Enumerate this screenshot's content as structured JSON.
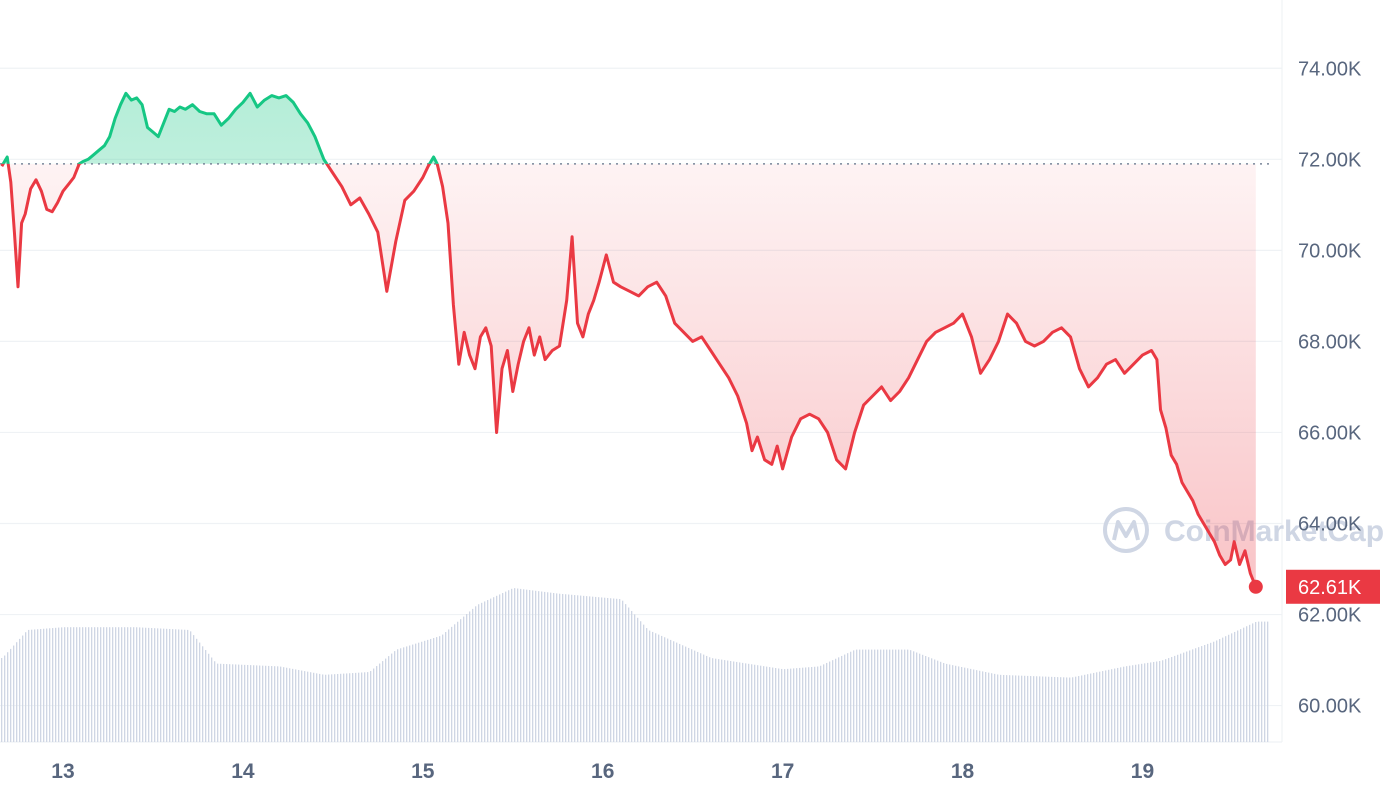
{
  "chart_data": {
    "type": "line",
    "title": "",
    "xlabel": "",
    "ylabel": "",
    "x_ticks": [
      "13",
      "14",
      "15",
      "16",
      "17",
      "18",
      "19"
    ],
    "y_ticks": [
      "74.00K",
      "72.00K",
      "70.00K",
      "68.00K",
      "66.00K",
      "64.00K",
      "62.00K",
      "60.00K"
    ],
    "ylim": [
      59200,
      75500
    ],
    "xlim": [
      12.65,
      19.72
    ],
    "baseline": 71900,
    "last_price_label": "62.61K",
    "last_price": 62610,
    "grid": true,
    "colors": {
      "up": "#16c784",
      "down": "#ea3943",
      "volume": "#cfd6e4",
      "grid": "#eff2f5"
    },
    "series": [
      {
        "values": [
          [
            12.66,
            71850
          ],
          [
            12.69,
            72050
          ],
          [
            12.71,
            71500
          ],
          [
            12.73,
            70400
          ],
          [
            12.75,
            69200
          ],
          [
            12.77,
            70600
          ],
          [
            12.79,
            70800
          ],
          [
            12.82,
            71350
          ],
          [
            12.85,
            71550
          ],
          [
            12.88,
            71300
          ],
          [
            12.91,
            70900
          ],
          [
            12.94,
            70850
          ],
          [
            12.97,
            71050
          ],
          [
            13.0,
            71300
          ],
          [
            13.03,
            71450
          ],
          [
            13.06,
            71600
          ],
          [
            13.09,
            71900
          ],
          [
            13.11,
            71950
          ],
          [
            13.14,
            72000
          ],
          [
            13.17,
            72100
          ],
          [
            13.2,
            72200
          ],
          [
            13.23,
            72300
          ],
          [
            13.26,
            72500
          ],
          [
            13.29,
            72900
          ],
          [
            13.32,
            73200
          ],
          [
            13.35,
            73450
          ],
          [
            13.38,
            73300
          ],
          [
            13.41,
            73350
          ],
          [
            13.44,
            73200
          ],
          [
            13.47,
            72700
          ],
          [
            13.5,
            72600
          ],
          [
            13.53,
            72500
          ],
          [
            13.56,
            72800
          ],
          [
            13.59,
            73100
          ],
          [
            13.62,
            73050
          ],
          [
            13.65,
            73150
          ],
          [
            13.68,
            73100
          ],
          [
            13.72,
            73200
          ],
          [
            13.76,
            73050
          ],
          [
            13.8,
            73000
          ],
          [
            13.84,
            73000
          ],
          [
            13.88,
            72750
          ],
          [
            13.92,
            72900
          ],
          [
            13.96,
            73100
          ],
          [
            14.0,
            73250
          ],
          [
            14.04,
            73450
          ],
          [
            14.08,
            73150
          ],
          [
            14.12,
            73300
          ],
          [
            14.16,
            73400
          ],
          [
            14.2,
            73350
          ],
          [
            14.24,
            73400
          ],
          [
            14.28,
            73250
          ],
          [
            14.32,
            73000
          ],
          [
            14.36,
            72800
          ],
          [
            14.4,
            72500
          ],
          [
            14.45,
            72000
          ],
          [
            14.5,
            71700
          ],
          [
            14.55,
            71400
          ],
          [
            14.6,
            71000
          ],
          [
            14.65,
            71150
          ],
          [
            14.7,
            70800
          ],
          [
            14.75,
            70400
          ],
          [
            14.8,
            69100
          ],
          [
            14.85,
            70200
          ],
          [
            14.9,
            71100
          ],
          [
            14.95,
            71300
          ],
          [
            15.0,
            71600
          ],
          [
            15.03,
            71850
          ],
          [
            15.06,
            72050
          ],
          [
            15.08,
            71900
          ],
          [
            15.11,
            71400
          ],
          [
            15.14,
            70600
          ],
          [
            15.17,
            68800
          ],
          [
            15.2,
            67500
          ],
          [
            15.23,
            68200
          ],
          [
            15.26,
            67700
          ],
          [
            15.29,
            67400
          ],
          [
            15.32,
            68100
          ],
          [
            15.35,
            68300
          ],
          [
            15.38,
            67900
          ],
          [
            15.41,
            66000
          ],
          [
            15.44,
            67400
          ],
          [
            15.47,
            67800
          ],
          [
            15.5,
            66900
          ],
          [
            15.53,
            67500
          ],
          [
            15.56,
            68000
          ],
          [
            15.59,
            68300
          ],
          [
            15.62,
            67700
          ],
          [
            15.65,
            68100
          ],
          [
            15.68,
            67600
          ],
          [
            15.72,
            67800
          ],
          [
            15.76,
            67900
          ],
          [
            15.8,
            68900
          ],
          [
            15.83,
            70300
          ],
          [
            15.86,
            68400
          ],
          [
            15.89,
            68100
          ],
          [
            15.92,
            68600
          ],
          [
            15.95,
            68900
          ],
          [
            15.98,
            69300
          ],
          [
            16.02,
            69900
          ],
          [
            16.06,
            69300
          ],
          [
            16.1,
            69200
          ],
          [
            16.15,
            69100
          ],
          [
            16.2,
            69000
          ],
          [
            16.25,
            69200
          ],
          [
            16.3,
            69300
          ],
          [
            16.35,
            69000
          ],
          [
            16.4,
            68400
          ],
          [
            16.45,
            68200
          ],
          [
            16.5,
            68000
          ],
          [
            16.55,
            68100
          ],
          [
            16.6,
            67800
          ],
          [
            16.65,
            67500
          ],
          [
            16.7,
            67200
          ],
          [
            16.75,
            66800
          ],
          [
            16.8,
            66200
          ],
          [
            16.83,
            65600
          ],
          [
            16.86,
            65900
          ],
          [
            16.9,
            65400
          ],
          [
            16.94,
            65300
          ],
          [
            16.97,
            65700
          ],
          [
            17.0,
            65200
          ],
          [
            17.05,
            65900
          ],
          [
            17.1,
            66300
          ],
          [
            17.15,
            66400
          ],
          [
            17.2,
            66300
          ],
          [
            17.25,
            66000
          ],
          [
            17.3,
            65400
          ],
          [
            17.35,
            65200
          ],
          [
            17.4,
            66000
          ],
          [
            17.45,
            66600
          ],
          [
            17.5,
            66800
          ],
          [
            17.55,
            67000
          ],
          [
            17.6,
            66700
          ],
          [
            17.65,
            66900
          ],
          [
            17.7,
            67200
          ],
          [
            17.75,
            67600
          ],
          [
            17.8,
            68000
          ],
          [
            17.85,
            68200
          ],
          [
            17.9,
            68300
          ],
          [
            17.95,
            68400
          ],
          [
            18.0,
            68600
          ],
          [
            18.05,
            68100
          ],
          [
            18.1,
            67300
          ],
          [
            18.15,
            67600
          ],
          [
            18.2,
            68000
          ],
          [
            18.25,
            68600
          ],
          [
            18.3,
            68400
          ],
          [
            18.35,
            68000
          ],
          [
            18.4,
            67900
          ],
          [
            18.45,
            68000
          ],
          [
            18.5,
            68200
          ],
          [
            18.55,
            68300
          ],
          [
            18.6,
            68100
          ],
          [
            18.65,
            67400
          ],
          [
            18.7,
            67000
          ],
          [
            18.75,
            67200
          ],
          [
            18.8,
            67500
          ],
          [
            18.85,
            67600
          ],
          [
            18.9,
            67300
          ],
          [
            18.95,
            67500
          ],
          [
            19.0,
            67700
          ],
          [
            19.05,
            67800
          ],
          [
            19.08,
            67600
          ],
          [
            19.1,
            66500
          ],
          [
            19.13,
            66100
          ],
          [
            19.16,
            65500
          ],
          [
            19.19,
            65300
          ],
          [
            19.22,
            64900
          ],
          [
            19.25,
            64700
          ],
          [
            19.28,
            64500
          ],
          [
            19.31,
            64200
          ],
          [
            19.34,
            64000
          ],
          [
            19.37,
            63800
          ],
          [
            19.4,
            63600
          ],
          [
            19.43,
            63300
          ],
          [
            19.46,
            63100
          ],
          [
            19.49,
            63200
          ],
          [
            19.51,
            63600
          ],
          [
            19.54,
            63100
          ],
          [
            19.57,
            63400
          ],
          [
            19.6,
            62900
          ],
          [
            19.63,
            62610
          ]
        ]
      }
    ],
    "volume": [
      [
        12.66,
        0.3
      ],
      [
        12.8,
        0.4
      ],
      [
        13.0,
        0.41
      ],
      [
        13.4,
        0.41
      ],
      [
        13.7,
        0.4
      ],
      [
        13.85,
        0.28
      ],
      [
        14.2,
        0.27
      ],
      [
        14.45,
        0.24
      ],
      [
        14.7,
        0.25
      ],
      [
        14.85,
        0.33
      ],
      [
        15.1,
        0.38
      ],
      [
        15.3,
        0.49
      ],
      [
        15.5,
        0.55
      ],
      [
        15.75,
        0.53
      ],
      [
        16.1,
        0.51
      ],
      [
        16.25,
        0.4
      ],
      [
        16.6,
        0.3
      ],
      [
        17.0,
        0.26
      ],
      [
        17.2,
        0.27
      ],
      [
        17.4,
        0.33
      ],
      [
        17.7,
        0.33
      ],
      [
        17.9,
        0.28
      ],
      [
        18.2,
        0.24
      ],
      [
        18.6,
        0.23
      ],
      [
        18.9,
        0.27
      ],
      [
        19.1,
        0.29
      ],
      [
        19.4,
        0.36
      ],
      [
        19.63,
        0.43
      ]
    ]
  },
  "watermark": {
    "text": "CoinMarketCap",
    "icon": "coinmarketcap-logo-icon"
  }
}
